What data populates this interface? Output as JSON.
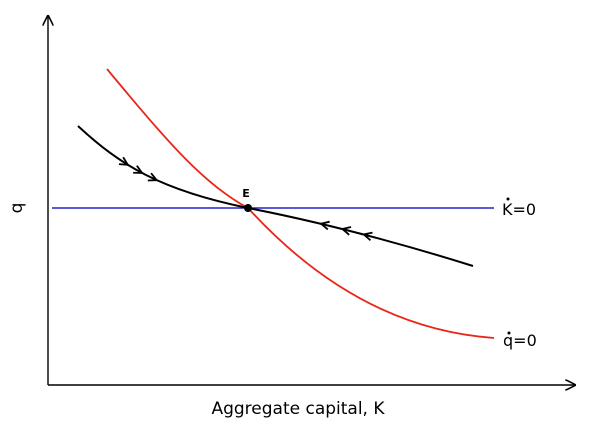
{
  "diagram": {
    "y_axis_label": "q",
    "x_axis_label": "Aggregate capital, K",
    "equilibrium_label": "E",
    "k_dot_label": "K=0",
    "q_dot_label": "q=0",
    "colors": {
      "axes": "#000000",
      "k_dot_line": "#2323c8",
      "q_dot_curve": "#e8261a",
      "saddle_path": "#000000",
      "equilibrium_point": "#000000"
    },
    "saddle_path_arrow_count": 6
  }
}
